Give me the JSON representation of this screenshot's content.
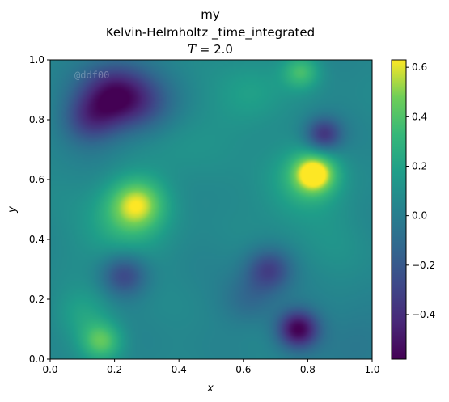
{
  "chart_data": {
    "type": "heatmap",
    "title_lines": [
      "my",
      "Kelvin-Helmholtz _time_integrated"
    ],
    "time_label": {
      "symbol": "T",
      "rest": " = 2.0"
    },
    "xlabel": "x",
    "ylabel": "y",
    "xlim": [
      0.0,
      1.0
    ],
    "ylim": [
      0.0,
      1.0
    ],
    "x_ticks": [
      "0.0",
      "0.2",
      "0.4",
      "0.6",
      "0.8",
      "1.0"
    ],
    "y_ticks": [
      "0.0",
      "0.2",
      "0.4",
      "0.6",
      "0.8",
      "1.0"
    ],
    "colorbar": {
      "colormap": "viridis",
      "vmin": -0.58,
      "vmax": 0.63,
      "ticks": [
        "0.6",
        "0.4",
        "0.2",
        "0.0",
        "−0.2",
        "−0.4"
      ]
    },
    "watermark": "@ddf00",
    "background_value": 0.05,
    "field_features": [
      {
        "x": 0.2,
        "y": 0.88,
        "value": -0.52,
        "spread": 0.075
      },
      {
        "x": 0.12,
        "y": 0.8,
        "value": -0.25,
        "spread": 0.06
      },
      {
        "x": 0.3,
        "y": 0.85,
        "value": -0.15,
        "spread": 0.07
      },
      {
        "x": 0.82,
        "y": 0.62,
        "value": 0.63,
        "spread": 0.045
      },
      {
        "x": 0.78,
        "y": 0.58,
        "value": 0.25,
        "spread": 0.09
      },
      {
        "x": 0.27,
        "y": 0.52,
        "value": 0.5,
        "spread": 0.06
      },
      {
        "x": 0.22,
        "y": 0.44,
        "value": 0.25,
        "spread": 0.09
      },
      {
        "x": 0.77,
        "y": 0.1,
        "value": -0.58,
        "spread": 0.045
      },
      {
        "x": 0.85,
        "y": 0.75,
        "value": -0.38,
        "spread": 0.04
      },
      {
        "x": 0.23,
        "y": 0.28,
        "value": -0.3,
        "spread": 0.05
      },
      {
        "x": 0.16,
        "y": 0.06,
        "value": 0.42,
        "spread": 0.045
      },
      {
        "x": 0.1,
        "y": 0.15,
        "value": 0.2,
        "spread": 0.06
      },
      {
        "x": 0.68,
        "y": 0.3,
        "value": -0.3,
        "spread": 0.05
      },
      {
        "x": 0.62,
        "y": 0.2,
        "value": -0.12,
        "spread": 0.06
      },
      {
        "x": 0.78,
        "y": 0.96,
        "value": 0.35,
        "spread": 0.04
      },
      {
        "x": 0.62,
        "y": 0.88,
        "value": 0.2,
        "spread": 0.08
      },
      {
        "x": 0.4,
        "y": 0.7,
        "value": 0.12,
        "spread": 0.1
      },
      {
        "x": 0.9,
        "y": 0.4,
        "value": 0.1,
        "spread": 0.08
      },
      {
        "x": 0.45,
        "y": 0.3,
        "value": 0.05,
        "spread": 0.1
      },
      {
        "x": 0.95,
        "y": 0.05,
        "value": -0.05,
        "spread": 0.08
      }
    ]
  }
}
